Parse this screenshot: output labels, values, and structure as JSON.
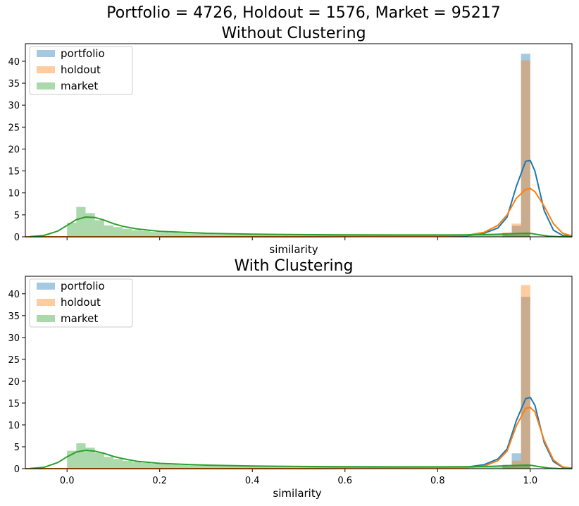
{
  "figure": {
    "suptitle": "Portfolio = 4726, Holdout = 1576, Market = 95217"
  },
  "chart_data": [
    {
      "type": "histogram",
      "title": "Without Clustering",
      "xlabel": "similarity",
      "ylabel": "",
      "xlim": [
        -0.09,
        1.09
      ],
      "ylim": [
        0,
        44
      ],
      "xticks": [],
      "xtick_labels": [],
      "yticks": [
        0,
        5,
        10,
        15,
        20,
        25,
        30,
        35,
        40
      ],
      "legend": {
        "position": "top-left",
        "entries": [
          "portfolio",
          "holdout",
          "market"
        ]
      },
      "bin_width": 0.02,
      "series": [
        {
          "name": "portfolio",
          "color": "#1f77b4",
          "bins": [
            {
              "x0": 0.98,
              "v": 41.7
            },
            {
              "x0": 0.96,
              "v": 2.5
            },
            {
              "x0": 0.94,
              "v": 0.8
            }
          ],
          "kde": [
            [
              -0.09,
              0
            ],
            [
              0.5,
              0
            ],
            [
              0.86,
              0.2
            ],
            [
              0.9,
              0.8
            ],
            [
              0.93,
              2.0
            ],
            [
              0.95,
              4.5
            ],
            [
              0.97,
              11.5
            ],
            [
              0.99,
              17.2
            ],
            [
              1.0,
              17.4
            ],
            [
              1.01,
              15.0
            ],
            [
              1.03,
              6.0
            ],
            [
              1.05,
              1.5
            ],
            [
              1.07,
              0.3
            ],
            [
              1.09,
              0.1
            ]
          ]
        },
        {
          "name": "holdout",
          "color": "#ff7f0e",
          "bins": [
            {
              "x0": 0.98,
              "v": 40.2
            },
            {
              "x0": 0.96,
              "v": 3.0
            },
            {
              "x0": 0.94,
              "v": 1.0
            }
          ],
          "kde": [
            [
              -0.09,
              0
            ],
            [
              0.5,
              0
            ],
            [
              0.86,
              0.3
            ],
            [
              0.9,
              1.0
            ],
            [
              0.93,
              2.6
            ],
            [
              0.95,
              5.0
            ],
            [
              0.97,
              8.8
            ],
            [
              0.99,
              10.8
            ],
            [
              1.0,
              11.0
            ],
            [
              1.01,
              10.3
            ],
            [
              1.03,
              7.0
            ],
            [
              1.05,
              3.0
            ],
            [
              1.07,
              0.8
            ],
            [
              1.09,
              0.2
            ]
          ]
        },
        {
          "name": "market",
          "color": "#2ca02c",
          "bins": [
            {
              "x0": 0.0,
              "v": 3.2
            },
            {
              "x0": 0.02,
              "v": 6.8
            },
            {
              "x0": 0.04,
              "v": 5.4
            },
            {
              "x0": 0.06,
              "v": 3.8
            },
            {
              "x0": 0.08,
              "v": 2.6
            },
            {
              "x0": 0.1,
              "v": 2.2
            },
            {
              "x0": 0.12,
              "v": 1.8
            },
            {
              "x0": 0.14,
              "v": 1.5
            },
            {
              "x0": 0.16,
              "v": 1.3
            },
            {
              "x0": 0.18,
              "v": 1.1
            },
            {
              "x0": 0.2,
              "v": 1.0
            },
            {
              "x0": 0.22,
              "v": 0.9
            },
            {
              "x0": 0.24,
              "v": 0.8
            },
            {
              "x0": 0.26,
              "v": 0.75
            },
            {
              "x0": 0.28,
              "v": 0.7
            },
            {
              "x0": 0.3,
              "v": 0.65
            },
            {
              "x0": 0.32,
              "v": 0.6
            },
            {
              "x0": 0.34,
              "v": 0.6
            },
            {
              "x0": 0.36,
              "v": 0.55
            },
            {
              "x0": 0.38,
              "v": 0.55
            },
            {
              "x0": 0.4,
              "v": 0.5
            },
            {
              "x0": 0.42,
              "v": 0.5
            },
            {
              "x0": 0.44,
              "v": 0.5
            },
            {
              "x0": 0.46,
              "v": 0.5
            },
            {
              "x0": 0.48,
              "v": 0.5
            },
            {
              "x0": 0.5,
              "v": 0.45
            },
            {
              "x0": 0.52,
              "v": 0.45
            },
            {
              "x0": 0.54,
              "v": 0.45
            },
            {
              "x0": 0.56,
              "v": 0.45
            },
            {
              "x0": 0.58,
              "v": 0.45
            },
            {
              "x0": 0.6,
              "v": 0.45
            },
            {
              "x0": 0.62,
              "v": 0.45
            },
            {
              "x0": 0.64,
              "v": 0.45
            },
            {
              "x0": 0.66,
              "v": 0.45
            },
            {
              "x0": 0.68,
              "v": 0.45
            },
            {
              "x0": 0.7,
              "v": 0.45
            },
            {
              "x0": 0.72,
              "v": 0.45
            },
            {
              "x0": 0.74,
              "v": 0.45
            },
            {
              "x0": 0.76,
              "v": 0.45
            },
            {
              "x0": 0.78,
              "v": 0.45
            },
            {
              "x0": 0.8,
              "v": 0.45
            },
            {
              "x0": 0.82,
              "v": 0.45
            },
            {
              "x0": 0.84,
              "v": 0.45
            },
            {
              "x0": 0.86,
              "v": 0.45
            },
            {
              "x0": 0.88,
              "v": 0.45
            },
            {
              "x0": 0.9,
              "v": 0.45
            },
            {
              "x0": 0.92,
              "v": 0.5
            },
            {
              "x0": 0.94,
              "v": 0.5
            },
            {
              "x0": 0.96,
              "v": 0.6
            },
            {
              "x0": 0.98,
              "v": 0.8
            }
          ],
          "kde": [
            [
              -0.08,
              0.05
            ],
            [
              -0.05,
              0.3
            ],
            [
              -0.02,
              1.3
            ],
            [
              0.0,
              2.6
            ],
            [
              0.02,
              3.9
            ],
            [
              0.04,
              4.5
            ],
            [
              0.06,
              4.4
            ],
            [
              0.08,
              3.8
            ],
            [
              0.1,
              3.0
            ],
            [
              0.12,
              2.4
            ],
            [
              0.15,
              1.8
            ],
            [
              0.2,
              1.25
            ],
            [
              0.3,
              0.8
            ],
            [
              0.4,
              0.6
            ],
            [
              0.5,
              0.5
            ],
            [
              0.6,
              0.45
            ],
            [
              0.7,
              0.42
            ],
            [
              0.8,
              0.42
            ],
            [
              0.86,
              0.45
            ],
            [
              0.92,
              0.55
            ],
            [
              0.96,
              0.7
            ],
            [
              0.99,
              0.8
            ],
            [
              1.0,
              0.78
            ],
            [
              1.02,
              0.45
            ],
            [
              1.04,
              0.15
            ],
            [
              1.06,
              0.03
            ],
            [
              1.09,
              0
            ]
          ]
        }
      ]
    },
    {
      "type": "histogram",
      "title": "With Clustering",
      "xlabel": "similarity",
      "ylabel": "",
      "xlim": [
        -0.09,
        1.09
      ],
      "ylim": [
        0,
        44
      ],
      "xticks": [
        0.0,
        0.2,
        0.4,
        0.6,
        0.8,
        1.0
      ],
      "xtick_labels": [
        "0.0",
        "0.2",
        "0.4",
        "0.6",
        "0.8",
        "1.0"
      ],
      "yticks": [
        0,
        5,
        10,
        15,
        20,
        25,
        30,
        35,
        40
      ],
      "legend": {
        "position": "top-left",
        "entries": [
          "portfolio",
          "holdout",
          "market"
        ]
      },
      "bin_width": 0.02,
      "series": [
        {
          "name": "portfolio",
          "color": "#1f77b4",
          "bins": [
            {
              "x0": 0.98,
              "v": 39.3
            },
            {
              "x0": 0.96,
              "v": 3.5
            },
            {
              "x0": 0.94,
              "v": 0.9
            }
          ],
          "kde": [
            [
              -0.09,
              0
            ],
            [
              0.5,
              0
            ],
            [
              0.86,
              0.3
            ],
            [
              0.9,
              0.9
            ],
            [
              0.93,
              2.2
            ],
            [
              0.95,
              4.5
            ],
            [
              0.97,
              11.0
            ],
            [
              0.99,
              16.0
            ],
            [
              1.0,
              16.3
            ],
            [
              1.01,
              14.5
            ],
            [
              1.03,
              6.0
            ],
            [
              1.05,
              1.6
            ],
            [
              1.07,
              0.3
            ],
            [
              1.09,
              0.1
            ]
          ]
        },
        {
          "name": "holdout",
          "color": "#ff7f0e",
          "bins": [
            {
              "x0": 0.98,
              "v": 42.0
            },
            {
              "x0": 0.96,
              "v": 1.8
            },
            {
              "x0": 0.94,
              "v": 0.6
            }
          ],
          "kde": [
            [
              -0.09,
              0
            ],
            [
              0.5,
              0
            ],
            [
              0.86,
              0.2
            ],
            [
              0.9,
              0.6
            ],
            [
              0.93,
              1.8
            ],
            [
              0.95,
              4.0
            ],
            [
              0.97,
              9.8
            ],
            [
              0.99,
              13.8
            ],
            [
              1.0,
              14.0
            ],
            [
              1.01,
              13.0
            ],
            [
              1.03,
              6.5
            ],
            [
              1.05,
              2.0
            ],
            [
              1.07,
              0.4
            ],
            [
              1.09,
              0.1
            ]
          ]
        },
        {
          "name": "market",
          "color": "#2ca02c",
          "bins": [
            {
              "x0": 0.0,
              "v": 4.1
            },
            {
              "x0": 0.02,
              "v": 5.8
            },
            {
              "x0": 0.04,
              "v": 4.8
            },
            {
              "x0": 0.06,
              "v": 3.6
            },
            {
              "x0": 0.08,
              "v": 2.7
            },
            {
              "x0": 0.1,
              "v": 2.2
            },
            {
              "x0": 0.12,
              "v": 1.8
            },
            {
              "x0": 0.14,
              "v": 1.5
            },
            {
              "x0": 0.16,
              "v": 1.3
            },
            {
              "x0": 0.18,
              "v": 1.1
            },
            {
              "x0": 0.2,
              "v": 1.0
            },
            {
              "x0": 0.22,
              "v": 0.9
            },
            {
              "x0": 0.24,
              "v": 0.8
            },
            {
              "x0": 0.26,
              "v": 0.75
            },
            {
              "x0": 0.28,
              "v": 0.7
            },
            {
              "x0": 0.3,
              "v": 0.65
            },
            {
              "x0": 0.32,
              "v": 0.6
            },
            {
              "x0": 0.34,
              "v": 0.6
            },
            {
              "x0": 0.36,
              "v": 0.55
            },
            {
              "x0": 0.38,
              "v": 0.55
            },
            {
              "x0": 0.4,
              "v": 0.5
            },
            {
              "x0": 0.42,
              "v": 0.5
            },
            {
              "x0": 0.44,
              "v": 0.5
            },
            {
              "x0": 0.46,
              "v": 0.5
            },
            {
              "x0": 0.48,
              "v": 0.5
            },
            {
              "x0": 0.5,
              "v": 0.45
            },
            {
              "x0": 0.52,
              "v": 0.45
            },
            {
              "x0": 0.54,
              "v": 0.45
            },
            {
              "x0": 0.56,
              "v": 0.45
            },
            {
              "x0": 0.58,
              "v": 0.45
            },
            {
              "x0": 0.6,
              "v": 0.45
            },
            {
              "x0": 0.62,
              "v": 0.45
            },
            {
              "x0": 0.64,
              "v": 0.45
            },
            {
              "x0": 0.66,
              "v": 0.45
            },
            {
              "x0": 0.68,
              "v": 0.45
            },
            {
              "x0": 0.7,
              "v": 0.45
            },
            {
              "x0": 0.72,
              "v": 0.45
            },
            {
              "x0": 0.74,
              "v": 0.45
            },
            {
              "x0": 0.76,
              "v": 0.45
            },
            {
              "x0": 0.78,
              "v": 0.45
            },
            {
              "x0": 0.8,
              "v": 0.45
            },
            {
              "x0": 0.82,
              "v": 0.45
            },
            {
              "x0": 0.84,
              "v": 0.45
            },
            {
              "x0": 0.86,
              "v": 0.45
            },
            {
              "x0": 0.88,
              "v": 0.45
            },
            {
              "x0": 0.9,
              "v": 0.45
            },
            {
              "x0": 0.92,
              "v": 0.5
            },
            {
              "x0": 0.94,
              "v": 0.5
            },
            {
              "x0": 0.96,
              "v": 0.6
            },
            {
              "x0": 0.98,
              "v": 0.8
            }
          ],
          "kde": [
            [
              -0.08,
              0.05
            ],
            [
              -0.05,
              0.3
            ],
            [
              -0.02,
              1.4
            ],
            [
              0.0,
              2.7
            ],
            [
              0.02,
              3.8
            ],
            [
              0.04,
              4.2
            ],
            [
              0.06,
              4.0
            ],
            [
              0.08,
              3.5
            ],
            [
              0.1,
              2.8
            ],
            [
              0.12,
              2.3
            ],
            [
              0.15,
              1.7
            ],
            [
              0.2,
              1.2
            ],
            [
              0.3,
              0.8
            ],
            [
              0.4,
              0.6
            ],
            [
              0.5,
              0.5
            ],
            [
              0.6,
              0.45
            ],
            [
              0.7,
              0.42
            ],
            [
              0.8,
              0.42
            ],
            [
              0.86,
              0.45
            ],
            [
              0.92,
              0.55
            ],
            [
              0.96,
              0.7
            ],
            [
              0.99,
              0.8
            ],
            [
              1.0,
              0.78
            ],
            [
              1.02,
              0.45
            ],
            [
              1.04,
              0.15
            ],
            [
              1.06,
              0.03
            ],
            [
              1.09,
              0
            ]
          ]
        }
      ]
    }
  ]
}
